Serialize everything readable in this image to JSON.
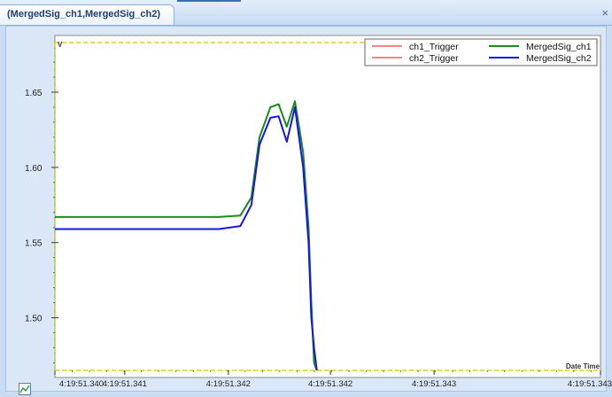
{
  "tab": {
    "title": "(MergedSig_ch1,MergedSig_ch2)",
    "close_icon": "close-icon"
  },
  "colors": {
    "ch1_trigger": "#e01010",
    "ch2_trigger": "#e01010",
    "merged_ch1": "#1a8a1a",
    "merged_ch2": "#1515e6",
    "threshold": "#d8c300"
  },
  "chart_data": {
    "type": "line",
    "ylabel": "V",
    "xlabel": "Date Time",
    "ylim": [
      1.465,
      1.683
    ],
    "yticks": [
      1.5,
      1.55,
      1.6,
      1.65
    ],
    "ytick_labels": [
      "1.50",
      "1.55",
      "1.60",
      "1.65"
    ],
    "xlim": [
      0,
      1
    ],
    "xtick_positions": [
      0,
      0.128,
      0.318,
      0.505,
      0.695,
      1
    ],
    "xtick_labels": [
      "4:19:51.340",
      "4:19:51.341",
      "4:19:51.342",
      "4:19:51.342",
      "4:19:51.343",
      "4:19:51.343"
    ],
    "legend": {
      "placement": "top-right",
      "entries": [
        "ch1_Trigger",
        "ch2_Trigger",
        "MergedSig_ch1",
        "MergedSig_ch2"
      ]
    },
    "grid": false,
    "series": [
      {
        "name": "MergedSig_ch1",
        "x": [
          0,
          0.05,
          0.1,
          0.15,
          0.2,
          0.25,
          0.3,
          0.34,
          0.36,
          0.375,
          0.395,
          0.41,
          0.425,
          0.44,
          0.455,
          0.465,
          0.47,
          0.475,
          0.48
        ],
        "values": [
          1.567,
          1.567,
          1.567,
          1.567,
          1.567,
          1.567,
          1.567,
          1.568,
          1.58,
          1.62,
          1.64,
          1.642,
          1.627,
          1.644,
          1.61,
          1.56,
          1.51,
          1.47,
          1.465
        ]
      },
      {
        "name": "MergedSig_ch2",
        "x": [
          0,
          0.05,
          0.1,
          0.15,
          0.2,
          0.25,
          0.3,
          0.34,
          0.36,
          0.375,
          0.395,
          0.41,
          0.425,
          0.44,
          0.455,
          0.465,
          0.47,
          0.475,
          0.48
        ],
        "values": [
          1.559,
          1.559,
          1.559,
          1.559,
          1.559,
          1.559,
          1.559,
          1.561,
          1.575,
          1.615,
          1.633,
          1.634,
          1.617,
          1.64,
          1.6,
          1.55,
          1.5,
          1.48,
          1.465
        ]
      },
      {
        "name": "ch1_Trigger",
        "x": [],
        "values": []
      },
      {
        "name": "ch2_Trigger",
        "x": [],
        "values": []
      }
    ]
  }
}
